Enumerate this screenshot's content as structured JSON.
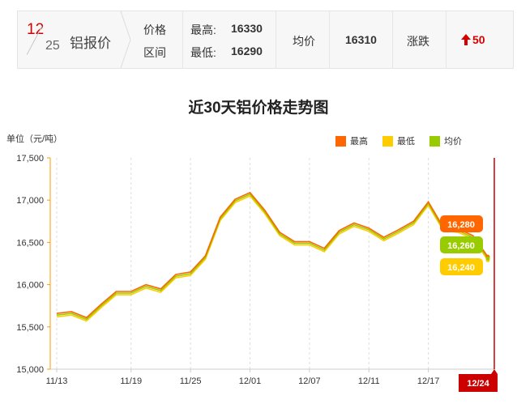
{
  "header": {
    "date_month": "12",
    "date_day": "25",
    "product": "铝报价",
    "range_label_1": "价格",
    "range_label_2": "区间",
    "high_label": "最高:",
    "high_value": "16330",
    "low_label": "最低:",
    "low_value": "16290",
    "avg_label": "均价",
    "avg_value": "16310",
    "change_label": "涨跌",
    "change_icon": "arrow-up-icon",
    "change_value": "50",
    "colors": {
      "date_month": "#d40000",
      "change": "#d40000"
    }
  },
  "chart_data": {
    "type": "line",
    "title": "近30天铝价格走势图",
    "ylabel": "单位（元/吨）",
    "xlabel": "",
    "ylim": [
      15000,
      17500
    ],
    "yticks": [
      "15,000",
      "15,500",
      "16,000",
      "16,500",
      "17,000",
      "17,500"
    ],
    "xtick_labels": [
      {
        "date": "11/13",
        "index": 0
      },
      {
        "date": "11/19",
        "index": 5
      },
      {
        "date": "11/25",
        "index": 9
      },
      {
        "date": "12/01",
        "index": 13
      },
      {
        "date": "12/07",
        "index": 17
      },
      {
        "date": "12/11",
        "index": 21
      },
      {
        "date": "12/17",
        "index": 25
      },
      {
        "date": "12/24",
        "index": 30
      }
    ],
    "grid": "vertical dashed",
    "legend_position": "top-right",
    "series": [
      {
        "name": "最高",
        "color": "#ff6600",
        "values": [
          15660,
          15680,
          15610,
          15770,
          15920,
          15920,
          16000,
          15950,
          16120,
          16150,
          16340,
          16800,
          17010,
          17090,
          16880,
          16620,
          16510,
          16510,
          16430,
          16640,
          16730,
          16670,
          16560,
          16650,
          16750,
          16980,
          16680,
          16660,
          16580,
          16330
        ]
      },
      {
        "name": "最低",
        "color": "#ffcc00",
        "values": [
          15620,
          15640,
          15570,
          15730,
          15880,
          15880,
          15960,
          15910,
          16080,
          16110,
          16300,
          16760,
          16970,
          17050,
          16840,
          16580,
          16470,
          16470,
          16390,
          16600,
          16690,
          16630,
          16520,
          16610,
          16710,
          16940,
          16640,
          16620,
          16540,
          16290
        ]
      },
      {
        "name": "均价",
        "color": "#99cc00",
        "values": [
          15640,
          15660,
          15590,
          15750,
          15900,
          15900,
          15980,
          15930,
          16100,
          16130,
          16320,
          16780,
          16990,
          17070,
          16860,
          16600,
          16490,
          16490,
          16410,
          16620,
          16710,
          16650,
          16540,
          16630,
          16730,
          16960,
          16660,
          16640,
          16560,
          16310
        ]
      }
    ],
    "tooltip_values": [
      "16,280",
      "16,260",
      "16,240"
    ],
    "crosshair_label": "12/24"
  }
}
